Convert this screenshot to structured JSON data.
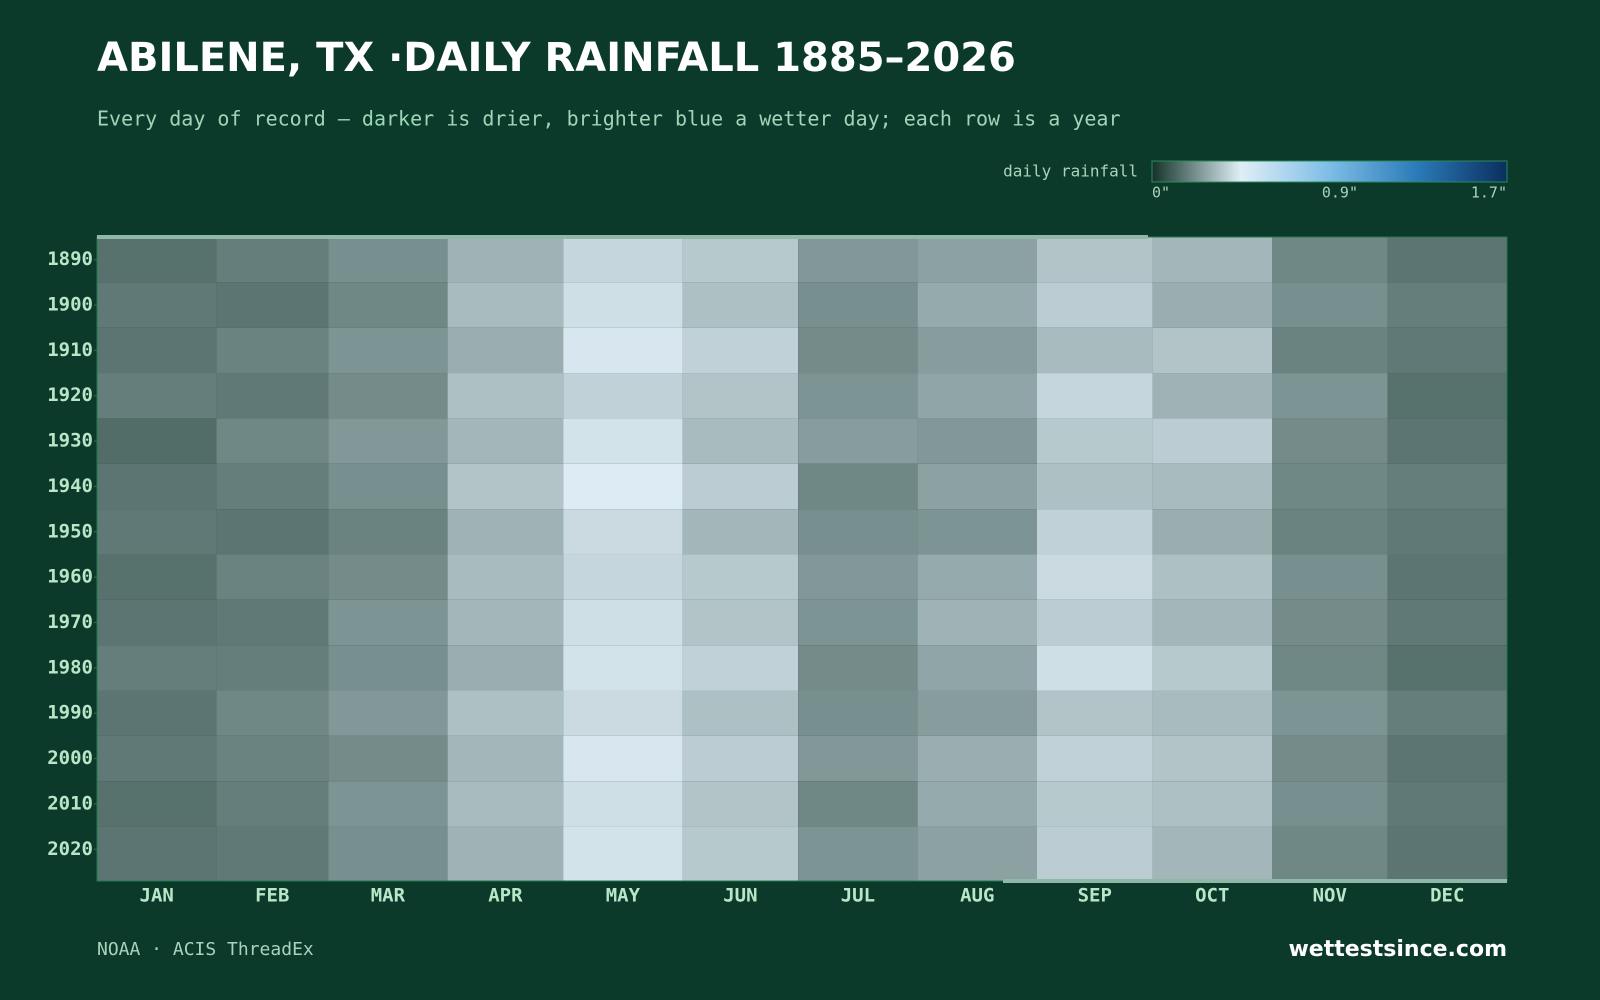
{
  "chart_data": {
    "type": "heatmap",
    "title": "ABILENE, TX ·DAILY RAINFALL 1885–2026",
    "subtitle": "Every day of record — darker is drier, brighter blue a wetter day; each row is a year",
    "legend_title": "daily rainfall",
    "clim": [
      0,
      1.7
    ],
    "cticks": [
      {
        "value": 0,
        "label": "0\""
      },
      {
        "value": 0.9,
        "label": "0.9\""
      },
      {
        "value": 1.7,
        "label": "1.7\""
      }
    ],
    "colormap": [
      "#14332a",
      "#dfeef6",
      "#7dbde6",
      "#2a7ab8",
      "#0b2e5e"
    ],
    "xlim": [
      0,
      366
    ],
    "xticks": [
      {
        "value": 15.5,
        "label": "JAN"
      },
      {
        "value": 45.5,
        "label": "FEB"
      },
      {
        "value": 75.5,
        "label": "MAR"
      },
      {
        "value": 106,
        "label": "APR"
      },
      {
        "value": 136.5,
        "label": "MAY"
      },
      {
        "value": 167,
        "label": "JUN"
      },
      {
        "value": 197.5,
        "label": "JUL"
      },
      {
        "value": 228.5,
        "label": "AUG"
      },
      {
        "value": 259,
        "label": "SEP"
      },
      {
        "value": 289.5,
        "label": "OCT"
      },
      {
        "value": 320,
        "label": "NOV"
      },
      {
        "value": 350.5,
        "label": "DEC"
      }
    ],
    "ylim": [
      1885,
      2027
    ],
    "yticks": [
      1890,
      1900,
      1910,
      1920,
      1930,
      1940,
      1950,
      1960,
      1970,
      1980,
      1990,
      2000,
      2010,
      2020
    ],
    "col_edges": [
      0,
      31,
      60,
      91,
      121,
      152,
      182,
      213,
      244,
      274,
      305,
      335,
      366
    ],
    "row_edges": [
      1885,
      1895,
      1905,
      1915,
      1925,
      1935,
      1945,
      1955,
      1965,
      1975,
      1985,
      1995,
      2005,
      2015,
      2027
    ],
    "values": [
      [
        0.14,
        0.17,
        0.21,
        0.29,
        0.37,
        0.34,
        0.23,
        0.25,
        0.33,
        0.3,
        0.19,
        0.15
      ],
      [
        0.16,
        0.15,
        0.19,
        0.31,
        0.39,
        0.32,
        0.21,
        0.27,
        0.35,
        0.28,
        0.21,
        0.17
      ],
      [
        0.15,
        0.18,
        0.22,
        0.28,
        0.41,
        0.36,
        0.2,
        0.24,
        0.31,
        0.33,
        0.18,
        0.16
      ],
      [
        0.17,
        0.16,
        0.2,
        0.32,
        0.36,
        0.33,
        0.22,
        0.26,
        0.37,
        0.29,
        0.22,
        0.14
      ],
      [
        0.13,
        0.19,
        0.23,
        0.3,
        0.4,
        0.31,
        0.24,
        0.23,
        0.34,
        0.35,
        0.2,
        0.15
      ],
      [
        0.15,
        0.17,
        0.21,
        0.33,
        0.42,
        0.35,
        0.19,
        0.25,
        0.32,
        0.31,
        0.19,
        0.17
      ],
      [
        0.16,
        0.15,
        0.18,
        0.29,
        0.38,
        0.3,
        0.21,
        0.22,
        0.36,
        0.28,
        0.18,
        0.16
      ],
      [
        0.14,
        0.18,
        0.2,
        0.31,
        0.37,
        0.34,
        0.23,
        0.27,
        0.38,
        0.32,
        0.21,
        0.15
      ],
      [
        0.15,
        0.16,
        0.22,
        0.3,
        0.39,
        0.33,
        0.22,
        0.29,
        0.35,
        0.3,
        0.2,
        0.16
      ],
      [
        0.17,
        0.17,
        0.21,
        0.28,
        0.4,
        0.36,
        0.2,
        0.26,
        0.39,
        0.34,
        0.19,
        0.14
      ],
      [
        0.15,
        0.19,
        0.23,
        0.32,
        0.38,
        0.32,
        0.21,
        0.24,
        0.33,
        0.31,
        0.22,
        0.17
      ],
      [
        0.16,
        0.18,
        0.2,
        0.3,
        0.41,
        0.35,
        0.23,
        0.28,
        0.36,
        0.33,
        0.2,
        0.15
      ],
      [
        0.14,
        0.17,
        0.22,
        0.31,
        0.39,
        0.33,
        0.19,
        0.27,
        0.34,
        0.32,
        0.21,
        0.16
      ],
      [
        0.15,
        0.16,
        0.21,
        0.29,
        0.4,
        0.34,
        0.22,
        0.25,
        0.35,
        0.3,
        0.19,
        0.15
      ]
    ],
    "source": "NOAA · ACIS ThreadEx",
    "brand": "wettestsince.com"
  }
}
